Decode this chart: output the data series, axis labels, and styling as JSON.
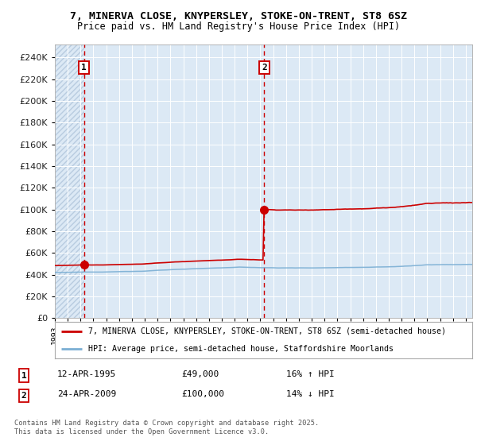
{
  "title_line1": "7, MINERVA CLOSE, KNYPERSLEY, STOKE-ON-TRENT, ST8 6SZ",
  "title_line2": "Price paid vs. HM Land Registry's House Price Index (HPI)",
  "bg_color": "#dce9f5",
  "yticks": [
    0,
    20000,
    40000,
    60000,
    80000,
    100000,
    120000,
    140000,
    160000,
    180000,
    200000,
    220000,
    240000
  ],
  "ylim": [
    0,
    252000
  ],
  "xlim_start": 1993.0,
  "xlim_end": 2025.5,
  "sale1_date": 1995.28,
  "sale1_price": 49000,
  "sale2_date": 2009.31,
  "sale2_price": 100000,
  "line_color_price": "#cc0000",
  "line_color_hpi": "#7bafd4",
  "dot_color": "#cc0000",
  "vline_color": "#cc0000",
  "legend_label1": "7, MINERVA CLOSE, KNYPERSLEY, STOKE-ON-TRENT, ST8 6SZ (semi-detached house)",
  "legend_label2": "HPI: Average price, semi-detached house, Staffordshire Moorlands",
  "note1_num": "1",
  "note1_date": "12-APR-1995",
  "note1_price": "£49,000",
  "note1_hpi": "16% ↑ HPI",
  "note2_num": "2",
  "note2_date": "24-APR-2009",
  "note2_price": "£100,000",
  "note2_hpi": "14% ↓ HPI",
  "footer": "Contains HM Land Registry data © Crown copyright and database right 2025.\nThis data is licensed under the Open Government Licence v3.0."
}
